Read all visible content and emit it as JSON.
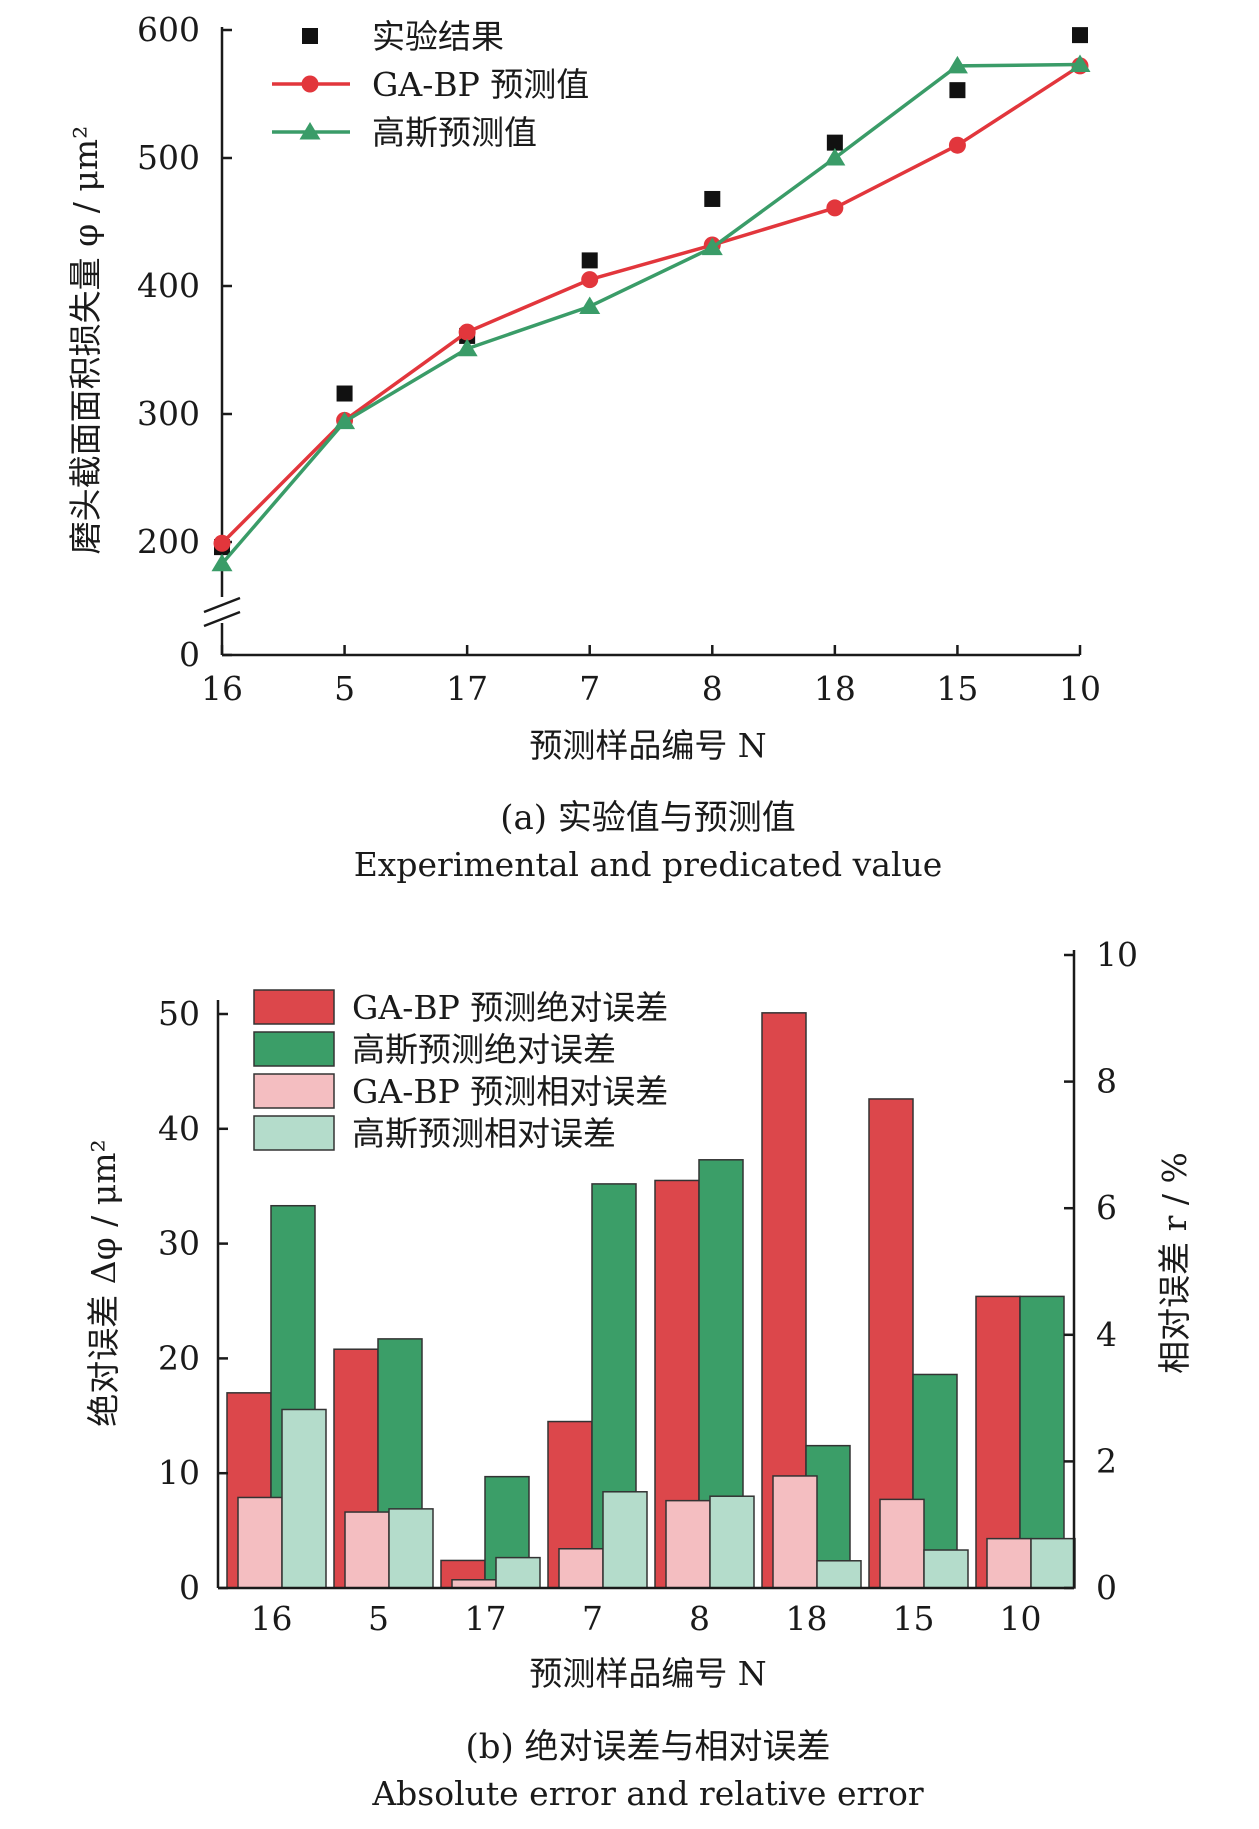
{
  "chart_data": [
    {
      "type": "line",
      "panel": "a",
      "categories": [
        "16",
        "5",
        "17",
        "7",
        "8",
        "18",
        "15",
        "10"
      ],
      "xlabel": "预测样品编号 N",
      "ylabel": "磨头截面面积损失量 φ / μm²",
      "yticks": [
        "0",
        "200",
        "300",
        "400",
        "500",
        "600"
      ],
      "ylim": [
        0,
        600
      ],
      "axis_break": [
        0,
        200
      ],
      "grid": false,
      "legend_position": "top-left",
      "series": [
        {
          "name": "实验结果",
          "style": "square-marker",
          "color": "#111111",
          "values": [
            196,
            316,
            361,
            420,
            468,
            512,
            553,
            596
          ]
        },
        {
          "name": "GA-BP 预测值",
          "style": "line-circle",
          "color": "#e2363c",
          "values": [
            199,
            295,
            364,
            405,
            432,
            461,
            510,
            572
          ]
        },
        {
          "name": "高斯预测值",
          "style": "line-triangle",
          "color": "#3a9c68",
          "values": [
            183,
            294,
            351,
            384,
            430,
            500,
            572,
            573
          ]
        }
      ],
      "caption_zh": "(a) 实验值与预测值",
      "caption_en": "Experimental and predicated value"
    },
    {
      "type": "bar",
      "panel": "b",
      "categories": [
        "16",
        "5",
        "17",
        "7",
        "8",
        "18",
        "15",
        "10"
      ],
      "xlabel": "预测样品编号 N",
      "ylabel_left": "绝对误差 Δφ / μm²",
      "ylabel_right": "相对误差 r / %",
      "yticks_left": [
        "0",
        "10",
        "20",
        "30",
        "40",
        "50"
      ],
      "yticks_right": [
        "0",
        "2",
        "4",
        "6",
        "8",
        "10"
      ],
      "ylim_left": [
        0,
        50
      ],
      "ylim_right": [
        0,
        10
      ],
      "legend_position": "top-left",
      "series": [
        {
          "name": "GA-BP 预测绝对误差",
          "axis": "left",
          "color": "#dc474b",
          "values": [
            17,
            20.8,
            2.4,
            14.5,
            35.5,
            50.1,
            42.6,
            25.4
          ]
        },
        {
          "name": "高斯预测绝对误差",
          "axis": "left",
          "color": "#3b9e68",
          "values": [
            33.3,
            21.7,
            9.7,
            35.2,
            37.3,
            12.4,
            18.6,
            25.4
          ]
        },
        {
          "name": "GA-BP 预测相对误差",
          "axis": "right",
          "color": "#f4bec1",
          "values": [
            1.43,
            1.2,
            0.13,
            0.62,
            1.38,
            1.77,
            1.4,
            0.78
          ]
        },
        {
          "name": "高斯预测相对误差",
          "axis": "right",
          "color": "#b4dccb",
          "values": [
            2.82,
            1.25,
            0.48,
            1.52,
            1.45,
            0.43,
            0.6,
            0.78
          ]
        }
      ],
      "caption_zh": "(b) 绝对误差与相对误差",
      "caption_en": "Absolute error and relative error"
    }
  ]
}
